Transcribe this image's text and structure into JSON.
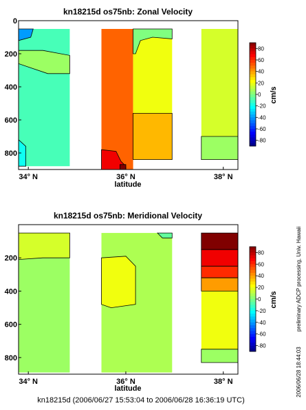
{
  "chart_data": [
    {
      "type": "heatmap",
      "title": "kn18215d os75nb: Zonal Velocity",
      "xlabel": "latitude",
      "xticks": [
        "34° N",
        "36° N",
        "38° N"
      ],
      "xtick_values": [
        34,
        36,
        38
      ],
      "xlim": [
        33.8,
        38.3
      ],
      "ylim": [
        900,
        0
      ],
      "yticks": [
        0,
        200,
        400,
        600,
        800
      ],
      "colorbar_label": "cm/s",
      "colorbar_ticks": [
        80,
        60,
        40,
        20,
        0,
        -20,
        -40,
        -60,
        -80
      ],
      "colorbar_range": [
        -90,
        90
      ],
      "sections": [
        {
          "lat_range": [
            33.8,
            34.85
          ],
          "depth_range": [
            50,
            880
          ],
          "background": -10,
          "regions": [
            {
              "value": -40,
              "points": [
                [
                  33.8,
                  50
                ],
                [
                  34.1,
                  50
                ],
                [
                  34.05,
                  100
                ],
                [
                  33.8,
                  120
                ]
              ]
            },
            {
              "value": 5,
              "points": [
                [
                  33.8,
                  180
                ],
                [
                  34.3,
                  180
                ],
                [
                  34.85,
                  210
                ],
                [
                  34.85,
                  320
                ],
                [
                  34.4,
                  320
                ],
                [
                  34.0,
                  280
                ],
                [
                  33.8,
                  260
                ]
              ]
            },
            {
              "value": -20,
              "points": [
                [
                  33.8,
                  720
                ],
                [
                  33.95,
                  760
                ],
                [
                  33.95,
                  880
                ],
                [
                  33.8,
                  880
                ]
              ]
            }
          ]
        },
        {
          "lat_range": [
            35.5,
            36.15
          ],
          "depth_range": [
            50,
            900
          ],
          "background": 50,
          "regions": [
            {
              "value": 70,
              "points": [
                [
                  35.5,
                  780
                ],
                [
                  35.8,
                  790
                ],
                [
                  35.9,
                  850
                ],
                [
                  36.0,
                  880
                ],
                [
                  35.95,
                  900
                ],
                [
                  35.5,
                  900
                ]
              ]
            },
            {
              "value": 90,
              "points": [
                [
                  35.88,
                  870
                ],
                [
                  36.0,
                  870
                ],
                [
                  36.0,
                  900
                ],
                [
                  35.88,
                  900
                ]
              ]
            }
          ]
        },
        {
          "lat_range": [
            36.15,
            36.95
          ],
          "depth_range": [
            50,
            840
          ],
          "background": 20,
          "regions": [
            {
              "value": 0,
              "points": [
                [
                  36.15,
                  50
                ],
                [
                  36.95,
                  50
                ],
                [
                  36.95,
                  110
                ],
                [
                  36.55,
                  100
                ],
                [
                  36.3,
                  120
                ],
                [
                  36.2,
                  200
                ],
                [
                  36.15,
                  200
                ]
              ]
            },
            {
              "value": 35,
              "points": [
                [
                  36.15,
                  560
                ],
                [
                  36.95,
                  560
                ],
                [
                  36.95,
                  840
                ],
                [
                  36.15,
                  840
                ]
              ]
            }
          ]
        },
        {
          "lat_range": [
            37.55,
            38.3
          ],
          "depth_range": [
            50,
            840
          ],
          "background": 15,
          "regions": [
            {
              "value": 5,
              "points": [
                [
                  37.55,
                  700
                ],
                [
                  38.3,
                  700
                ],
                [
                  38.3,
                  840
                ],
                [
                  37.55,
                  840
                ]
              ]
            }
          ]
        }
      ]
    },
    {
      "type": "heatmap",
      "title": "kn18215d os75nb: Meridional Velocity",
      "xlabel": "latitude",
      "xticks": [
        "34° N",
        "36° N",
        "38° N"
      ],
      "xtick_values": [
        34,
        36,
        38
      ],
      "xlim": [
        33.8,
        38.3
      ],
      "ylim": [
        900,
        0
      ],
      "yticks": [
        200,
        400,
        600,
        800
      ],
      "colorbar_label": "cm/s",
      "colorbar_ticks": [
        80,
        60,
        40,
        20,
        0,
        -20,
        -40,
        -60,
        -80
      ],
      "colorbar_range": [
        -90,
        90
      ],
      "sections": [
        {
          "lat_range": [
            33.8,
            34.85
          ],
          "depth_range": [
            50,
            890
          ],
          "background": 5,
          "regions": [
            {
              "value": 15,
              "points": [
                [
                  33.8,
                  50
                ],
                [
                  34.85,
                  50
                ],
                [
                  34.85,
                  200
                ],
                [
                  34.3,
                  200
                ],
                [
                  33.8,
                  210
                ]
              ]
            }
          ]
        },
        {
          "lat_range": [
            35.5,
            36.95
          ],
          "depth_range": [
            50,
            890
          ],
          "background": 8,
          "regions": [
            {
              "value": 20,
              "points": [
                [
                  35.5,
                  200
                ],
                [
                  36.0,
                  190
                ],
                [
                  36.2,
                  250
                ],
                [
                  36.2,
                  480
                ],
                [
                  35.7,
                  500
                ],
                [
                  35.5,
                  480
                ]
              ]
            },
            {
              "value": -5,
              "points": [
                [
                  36.65,
                  50
                ],
                [
                  36.95,
                  50
                ],
                [
                  36.95,
                  80
                ],
                [
                  36.75,
                  80
                ]
              ]
            }
          ]
        },
        {
          "lat_range": [
            37.55,
            38.3
          ],
          "depth_range": [
            50,
            830
          ],
          "background": 20,
          "regions": [
            {
              "value": 90,
              "points": [
                [
                  37.55,
                  50
                ],
                [
                  38.3,
                  50
                ],
                [
                  38.3,
                  150
                ],
                [
                  37.55,
                  150
                ]
              ]
            },
            {
              "value": 70,
              "points": [
                [
                  37.55,
                  150
                ],
                [
                  38.3,
                  150
                ],
                [
                  38.3,
                  250
                ],
                [
                  37.55,
                  250
                ]
              ]
            },
            {
              "value": 60,
              "points": [
                [
                  37.55,
                  250
                ],
                [
                  38.3,
                  250
                ],
                [
                  38.3,
                  320
                ],
                [
                  37.55,
                  320
                ]
              ]
            },
            {
              "value": 40,
              "points": [
                [
                  37.55,
                  320
                ],
                [
                  38.3,
                  320
                ],
                [
                  38.3,
                  400
                ],
                [
                  37.55,
                  400
                ]
              ]
            },
            {
              "value": 5,
              "points": [
                [
                  37.55,
                  750
                ],
                [
                  38.3,
                  750
                ],
                [
                  38.3,
                  830
                ],
                [
                  37.55,
                  830
                ]
              ]
            }
          ]
        }
      ]
    }
  ],
  "side_text": "preliminary ADCP processing,  Univ. Hawaii",
  "side_date": "2006/06/28 18:44:03",
  "footer": "kn18215d (2006/06/27 15:53:04 to 2006/06/28 16:36:19 UTC)"
}
